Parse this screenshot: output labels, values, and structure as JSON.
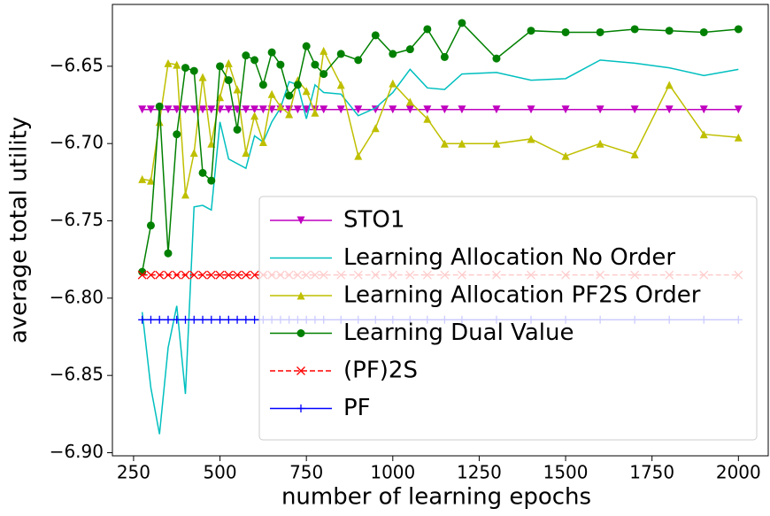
{
  "chart_data": {
    "type": "line",
    "xlabel": "number of learning epochs",
    "ylabel": "average total utility",
    "x": [
      275,
      300,
      325,
      350,
      375,
      400,
      425,
      450,
      475,
      500,
      525,
      550,
      575,
      600,
      625,
      650,
      675,
      700,
      725,
      750,
      775,
      800,
      850,
      900,
      950,
      1000,
      1050,
      1100,
      1150,
      1200,
      1300,
      1400,
      1500,
      1600,
      1700,
      1800,
      1900,
      2000
    ],
    "xlim": [
      188.75,
      2086.25
    ],
    "xticks": [
      250,
      500,
      750,
      1000,
      1250,
      1500,
      1750,
      2000
    ],
    "ylim": [
      -6.902,
      -6.61
    ],
    "yticks": [
      {
        "value": -6.65,
        "label": "−6.65"
      },
      {
        "value": -6.7,
        "label": "−6.70"
      },
      {
        "value": -6.75,
        "label": "−6.75"
      },
      {
        "value": -6.8,
        "label": "−6.80"
      },
      {
        "value": -6.85,
        "label": "−6.85"
      },
      {
        "value": -6.9,
        "label": "−6.90"
      }
    ],
    "legend_position": "lower right",
    "series": [
      {
        "name": "STO1",
        "color": "#bf00bf",
        "marker": "v",
        "linestyle": "solid",
        "values": [
          -6.678,
          -6.678,
          -6.678,
          -6.678,
          -6.678,
          -6.678,
          -6.678,
          -6.678,
          -6.678,
          -6.678,
          -6.678,
          -6.678,
          -6.678,
          -6.678,
          -6.678,
          -6.678,
          -6.678,
          -6.678,
          -6.678,
          -6.678,
          -6.678,
          -6.678,
          -6.678,
          -6.678,
          -6.678,
          -6.678,
          -6.678,
          -6.678,
          -6.678,
          -6.678,
          -6.678,
          -6.678,
          -6.678,
          -6.678,
          -6.678,
          -6.678,
          -6.678,
          -6.678
        ]
      },
      {
        "name": "Learning Allocation No Order",
        "color": "#00bfbf",
        "marker": "none",
        "linestyle": "solid",
        "values": [
          -6.809,
          -6.858,
          -6.888,
          -6.832,
          -6.805,
          -6.862,
          -6.741,
          -6.74,
          -6.743,
          -6.686,
          -6.71,
          -6.713,
          -6.716,
          -6.695,
          -6.699,
          -6.686,
          -6.677,
          -6.66,
          -6.662,
          -6.684,
          -6.662,
          -6.667,
          -6.668,
          -6.682,
          -6.677,
          -6.667,
          -6.652,
          -6.664,
          -6.665,
          -6.655,
          -6.654,
          -6.659,
          -6.658,
          -6.646,
          -6.648,
          -6.651,
          -6.656,
          -6.652
        ]
      },
      {
        "name": "Learning Allocation PF2S Order",
        "color": "#bfbf00",
        "marker": "^",
        "linestyle": "solid",
        "values": [
          -6.723,
          -6.724,
          -6.686,
          -6.648,
          -6.649,
          -6.733,
          -6.706,
          -6.657,
          -6.7,
          -6.67,
          -6.648,
          -6.665,
          -6.706,
          -6.682,
          -6.699,
          -6.668,
          -6.676,
          -6.681,
          -6.659,
          -6.666,
          -6.68,
          -6.64,
          -6.662,
          -6.708,
          -6.69,
          -6.661,
          -6.673,
          -6.684,
          -6.7,
          -6.7,
          -6.7,
          -6.697,
          -6.708,
          -6.7,
          -6.707,
          -6.662,
          -6.694,
          -6.696
        ]
      },
      {
        "name": "Learning Dual Value",
        "color": "#008000",
        "marker": "o",
        "linestyle": "solid",
        "values": [
          -6.783,
          -6.753,
          -6.676,
          -6.771,
          -6.694,
          -6.651,
          -6.653,
          -6.719,
          -6.724,
          -6.65,
          -6.659,
          -6.691,
          -6.643,
          -6.646,
          -6.662,
          -6.641,
          -6.649,
          -6.669,
          -6.662,
          -6.637,
          -6.649,
          -6.655,
          -6.642,
          -6.646,
          -6.63,
          -6.642,
          -6.639,
          -6.626,
          -6.644,
          -6.622,
          -6.645,
          -6.627,
          -6.628,
          -6.628,
          -6.626,
          -6.627,
          -6.628,
          -6.626
        ]
      },
      {
        "name": "(PF)2S",
        "color": "#ff0000",
        "marker": "x",
        "linestyle": "dashed",
        "values": [
          -6.785,
          -6.785,
          -6.785,
          -6.785,
          -6.785,
          -6.785,
          -6.785,
          -6.785,
          -6.785,
          -6.785,
          -6.785,
          -6.785,
          -6.785,
          -6.785,
          -6.785,
          -6.785,
          -6.785,
          -6.785,
          -6.785,
          -6.785,
          -6.785,
          -6.785,
          -6.785,
          -6.785,
          -6.785,
          -6.785,
          -6.785,
          -6.785,
          -6.785,
          -6.785,
          -6.785,
          -6.785,
          -6.785,
          -6.785,
          -6.785,
          -6.785,
          -6.785,
          -6.785
        ]
      },
      {
        "name": "PF",
        "color": "#0000ff",
        "marker": "+",
        "linestyle": "solid",
        "values": [
          -6.814,
          -6.814,
          -6.814,
          -6.814,
          -6.814,
          -6.814,
          -6.814,
          -6.814,
          -6.814,
          -6.814,
          -6.814,
          -6.814,
          -6.814,
          -6.814,
          -6.814,
          -6.814,
          -6.814,
          -6.814,
          -6.814,
          -6.814,
          -6.814,
          -6.814,
          -6.814,
          -6.814,
          -6.814,
          -6.814,
          -6.814,
          -6.814,
          -6.814,
          -6.814,
          -6.814,
          -6.814,
          -6.814,
          -6.814,
          -6.814,
          -6.814,
          -6.814,
          -6.814
        ]
      }
    ]
  }
}
